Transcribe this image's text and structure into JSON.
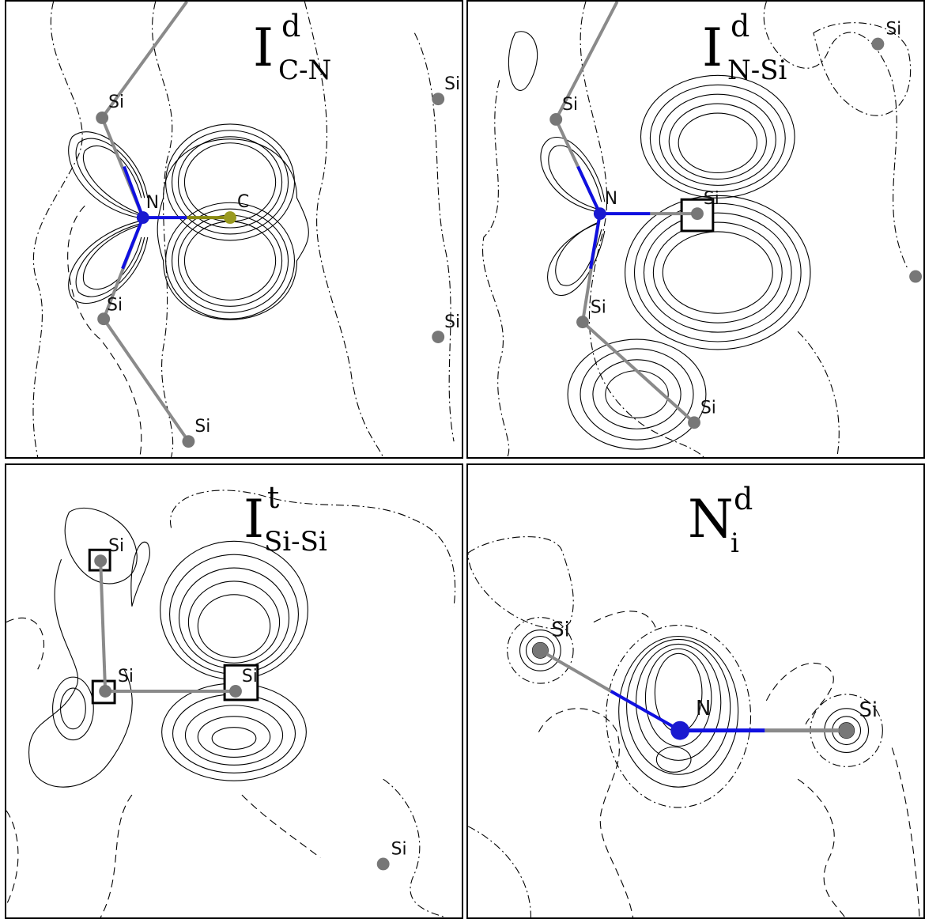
{
  "panels": [
    {
      "title": {
        "main": "I",
        "sup": "d",
        "sub": "C-N"
      },
      "atoms": [
        "Si",
        "Si",
        "N",
        "C",
        "Si",
        "Si",
        "Si"
      ]
    },
    {
      "title": {
        "main": "I",
        "sup": "d",
        "sub": "N-Si"
      },
      "atoms": [
        "Si",
        "Si",
        "N",
        "Si",
        "Si",
        "Si"
      ]
    },
    {
      "title": {
        "main": "I",
        "sup": "t",
        "sub": "Si-Si"
      },
      "atoms": [
        "Si",
        "Si",
        "Si",
        "Si"
      ]
    },
    {
      "title": {
        "main": "N",
        "sup": "d",
        "sub": "i"
      },
      "atoms": [
        "Si",
        "N",
        "Si"
      ]
    }
  ],
  "colors": {
    "bond_gray": "#8a8a8a",
    "bond_blue": "#1010e0",
    "bond_olive": "#8a8a10",
    "atom_si": "#777777",
    "atom_n": "#1a1ad0",
    "atom_c": "#9a9a20",
    "contour": "#000000"
  }
}
